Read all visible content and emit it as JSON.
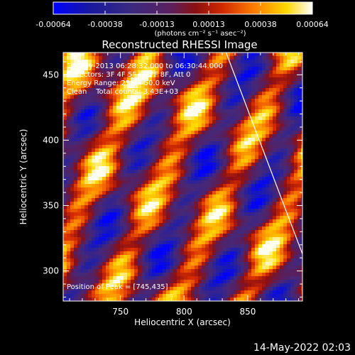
{
  "colorbar": {
    "tick_labels": [
      "-0.00064",
      "-0.00038",
      "-0.00013",
      "0.00013",
      "0.00038",
      "0.00064"
    ],
    "unit_label": "(photons cm⁻² s⁻¹ asec⁻²)",
    "colors": [
      "#0000ff",
      "#1a1a8c",
      "#4a2a7a",
      "#6a1a4a",
      "#c81e00",
      "#ff7800",
      "#ffe000",
      "#ffffff"
    ]
  },
  "chart_data": {
    "type": "heatmap",
    "title": "Reconstructed RHESSI Image",
    "xlabel": "Heliocentric X (arcsec)",
    "ylabel": "Heliocentric Y (arcsec)",
    "xlim": [
      705,
      893
    ],
    "ylim": [
      277,
      467
    ],
    "x_ticks": [
      750,
      800,
      850
    ],
    "y_ticks": [
      300,
      350,
      400,
      450
    ],
    "annotations": [
      "14-May-2013 06:28:32.000 to 06:30:44.000",
      "Detectors: 3F 4F 5F 6F 7F 8F, Att 0",
      "Energy Range: 25.0 - 50.0 keV",
      "Clean    Total counts: 3.43E+03"
    ],
    "peak_label": "Position of Peak = [745,435]",
    "peak": [
      745,
      435
    ],
    "limb_line": [
      [
        833,
        467
      ],
      [
        893,
        313
      ]
    ]
  },
  "timestamp": "14-May-2022 02:03"
}
